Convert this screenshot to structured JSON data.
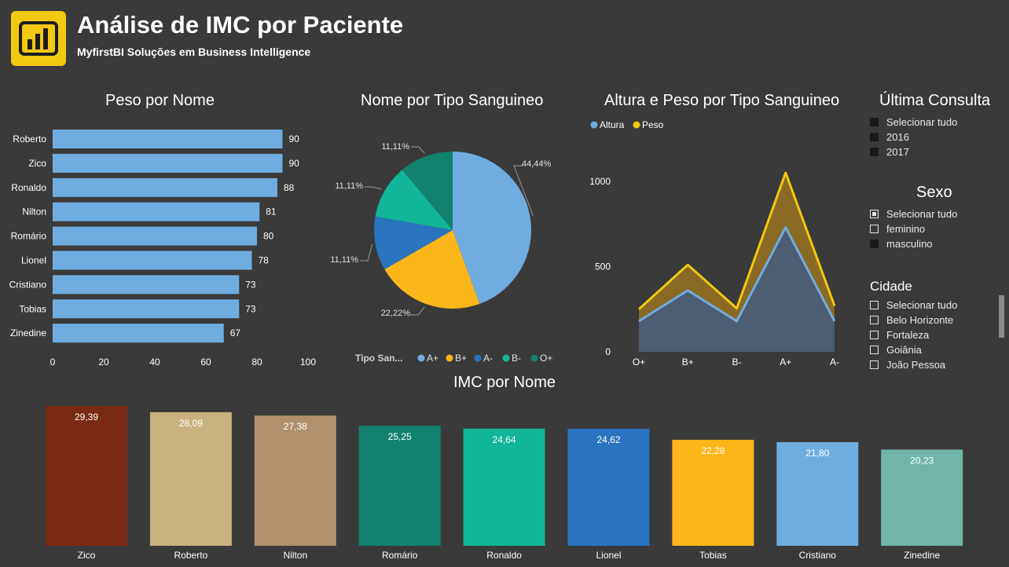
{
  "header": {
    "title": "Análise de IMC por Paciente",
    "subtitle": "MyfirstBI Soluções em Business Intelligence",
    "logo_icon": "power-bi-logo-icon"
  },
  "colors": {
    "background": "#3a3a3a",
    "bar_blue": "#6fade1",
    "altura": "#6fade1",
    "peso": "#f2c811"
  },
  "peso_chart": {
    "title": "Peso por Nome",
    "chart_data": {
      "type": "bar",
      "orientation": "horizontal",
      "categories": [
        "Roberto",
        "Zico",
        "Ronaldo",
        "Nilton",
        "Romário",
        "Lionel",
        "Cristiano",
        "Tobias",
        "Zinedine"
      ],
      "values": [
        90,
        90,
        88,
        81,
        80,
        78,
        73,
        73,
        67
      ],
      "value_labels": [
        "90",
        "90",
        "88",
        "81",
        "80",
        "78",
        "73",
        "73",
        "67"
      ],
      "xlim": [
        0,
        100
      ],
      "ticks": [
        "0",
        "20",
        "40",
        "60",
        "80",
        "100"
      ],
      "color": "#6fade1"
    }
  },
  "pie_chart": {
    "title": "Nome por Tipo Sanguineo",
    "legend_title": "Tipo San...",
    "chart_data": {
      "type": "pie",
      "categories": [
        "A+",
        "B+",
        "A-",
        "B-",
        "O+"
      ],
      "values": [
        44.44,
        22.22,
        11.11,
        11.11,
        11.11
      ],
      "labels": [
        "44,44%",
        "22,22%",
        "11,11%",
        "11,11%",
        "11,11%"
      ],
      "colors": [
        "#6fade1",
        "#fbb71a",
        "#2a74c0",
        "#11b597",
        "#12826f"
      ]
    }
  },
  "area_chart": {
    "title": "Altura e Peso por Tipo Sanguineo",
    "legend": [
      "Altura",
      "Peso"
    ],
    "chart_data": {
      "type": "area",
      "categories": [
        "O+",
        "B+",
        "B-",
        "A+",
        "A-"
      ],
      "series": [
        {
          "name": "Peso",
          "values": [
            250,
            510,
            255,
            1050,
            270
          ]
        },
        {
          "name": "Altura",
          "values": [
            180,
            360,
            180,
            730,
            180
          ]
        }
      ],
      "ylim": [
        0,
        1050
      ],
      "yticks": [
        "0",
        "500",
        "1000"
      ],
      "colors": [
        "#f2c811",
        "#6fade1"
      ]
    }
  },
  "imc_chart": {
    "title": "IMC por Nome",
    "chart_data": {
      "type": "bar",
      "categories": [
        "Zico",
        "Roberto",
        "Nilton",
        "Romário",
        "Ronaldo",
        "Lionel",
        "Tobias",
        "Cristiano",
        "Zinedine"
      ],
      "values": [
        29.39,
        28.09,
        27.38,
        25.25,
        24.64,
        24.62,
        22.28,
        21.8,
        20.23
      ],
      "value_labels": [
        "29,39",
        "28,09",
        "27,38",
        "25,25",
        "24,64",
        "24,62",
        "22,28",
        "21,80",
        "20,23"
      ],
      "colors": [
        "#7a2a12",
        "#c8b27e",
        "#b0916e",
        "#12826f",
        "#11b597",
        "#2a74c0",
        "#fbb71a",
        "#6fade1",
        "#6fb6a8"
      ]
    }
  },
  "slicers": {
    "ultima_consulta": {
      "title": "Última Consulta",
      "items": [
        "Selecionar tudo",
        "2016",
        "2017"
      ]
    },
    "sexo": {
      "title": "Sexo",
      "items": [
        "Selecionar tudo",
        "feminino",
        "masculino"
      ]
    },
    "cidade": {
      "title": "Cidade",
      "items": [
        "Selecionar tudo",
        "Belo Horizonte",
        "Fortaleza",
        "Goiânia",
        "João Pessoa"
      ]
    }
  }
}
